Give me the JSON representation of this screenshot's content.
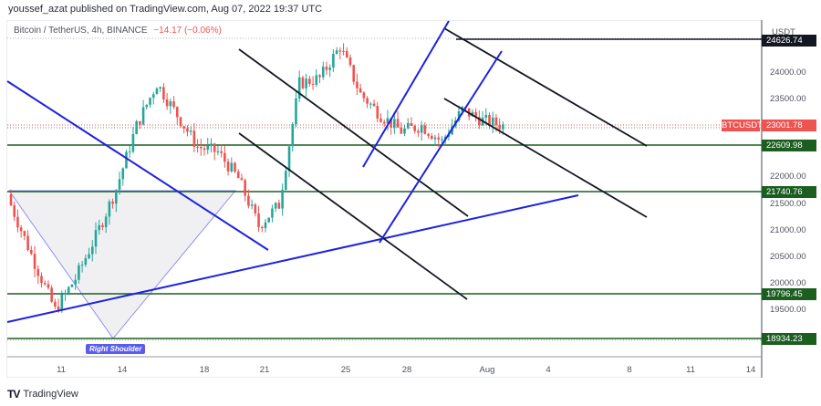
{
  "header": {
    "published": "youssef_azat published on TradingView.com, Aug 07, 2022 19:37 UTC"
  },
  "legend": {
    "symbol": "Bitcoin / TetherUS, 4h, BINANCE",
    "change": "−14.17 (−0.06%)"
  },
  "price_axis": {
    "currency": "USDT",
    "ticks": [
      "24000.00",
      "23500.00",
      "22000.00",
      "21500.00",
      "21000.00",
      "20500.00",
      "20000.00",
      "19500.00"
    ],
    "top_tag": "24626.74",
    "last_price": "23001.78",
    "symbol_tag": "BTCUSDT",
    "levels": [
      "22609.98",
      "21740.76",
      "19796.45",
      "18934.23"
    ]
  },
  "time_axis": {
    "ticks": [
      "11",
      "14",
      "18",
      "21",
      "25",
      "28",
      "Aug",
      "4",
      "8",
      "11",
      "14"
    ]
  },
  "annotations": {
    "right_shoulder": "Right Shoulder"
  },
  "footer": {
    "logo": "TV",
    "brand": "TradingView"
  },
  "colors": {
    "up": "#26a69a",
    "down": "#ef5350",
    "level_line": "#1b5e20",
    "trend_blue": "#1e22e0",
    "channel_black": "#131722",
    "pattern_fill": "#f0f0f2",
    "pattern_stroke": "#8f8ff0"
  },
  "chart_data": {
    "type": "candlestick",
    "title": "Bitcoin / TetherUS, 4h, BINANCE",
    "xlabel": "",
    "ylabel": "USDT",
    "ylim": [
      18700,
      24900
    ],
    "x_ticks": [
      "11",
      "14",
      "18",
      "21",
      "25",
      "28",
      "Aug",
      "4",
      "8",
      "11",
      "14"
    ],
    "y_ticks": [
      19500,
      20000,
      20500,
      21000,
      21500,
      22000,
      23500,
      24000
    ],
    "last_price": 23001.78,
    "change": -14.17,
    "change_pct": -0.06,
    "horizontal_levels": [
      24626.74,
      22609.98,
      21740.76,
      19796.45,
      18934.23
    ],
    "approx_closes": [
      {
        "date": "Jul 10",
        "price": 21650
      },
      {
        "date": "Jul 12",
        "price": 20400
      },
      {
        "date": "Jul 13",
        "price": 19500
      },
      {
        "date": "Jul 14",
        "price": 20100
      },
      {
        "date": "Jul 16",
        "price": 20900
      },
      {
        "date": "Jul 18",
        "price": 21800
      },
      {
        "date": "Jul 19",
        "price": 23000
      },
      {
        "date": "Jul 20",
        "price": 23800
      },
      {
        "date": "Jul 21",
        "price": 23200
      },
      {
        "date": "Jul 22",
        "price": 22600
      },
      {
        "date": "Jul 24",
        "price": 22500
      },
      {
        "date": "Jul 25",
        "price": 22000
      },
      {
        "date": "Jul 26",
        "price": 21100
      },
      {
        "date": "Jul 27",
        "price": 21500
      },
      {
        "date": "Jul 28",
        "price": 23800
      },
      {
        "date": "Jul 29",
        "price": 23900
      },
      {
        "date": "Jul 30",
        "price": 24500
      },
      {
        "date": "Jul 31",
        "price": 23600
      },
      {
        "date": "Aug 1",
        "price": 23200
      },
      {
        "date": "Aug 2",
        "price": 22900
      },
      {
        "date": "Aug 3",
        "price": 23000
      },
      {
        "date": "Aug 4",
        "price": 22700
      },
      {
        "date": "Aug 5",
        "price": 23300
      },
      {
        "date": "Aug 6",
        "price": 23100
      },
      {
        "date": "Aug 7",
        "price": 23001.78
      }
    ],
    "drawings": [
      {
        "type": "descending_trendline",
        "color": "blue"
      },
      {
        "type": "ascending_trendline",
        "color": "blue"
      },
      {
        "type": "descending_channel",
        "count": 2,
        "color": "black"
      },
      {
        "type": "ascending_channel",
        "color": "blue"
      },
      {
        "type": "triangle_pattern",
        "label": "Right Shoulder"
      }
    ]
  }
}
